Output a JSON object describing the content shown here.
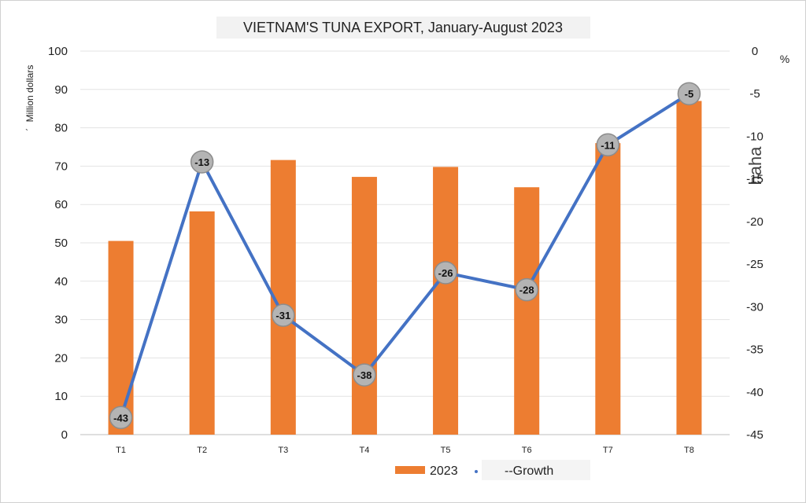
{
  "chart_data": {
    "type": "bar",
    "title": "VIETNAM'S TUNA EXPORT, January-August 2023",
    "categories": [
      "T1",
      "T2",
      "T3",
      "T4",
      "T5",
      "T6",
      "T7",
      "T8"
    ],
    "series": [
      {
        "name": "2023",
        "type": "bar",
        "axis": "left",
        "color": "#ed7d31",
        "values": [
          50.5,
          58.2,
          71.6,
          67.2,
          69.8,
          64.5,
          76,
          87
        ]
      },
      {
        "name": "--Growth",
        "type": "line",
        "axis": "right",
        "color": "#4472c4",
        "values": [
          -43,
          -13,
          -31,
          -38,
          -26,
          -28,
          -11,
          -5
        ]
      }
    ],
    "ylabel": "Million dollars",
    "y2label": "%",
    "ylim": [
      0,
      100
    ],
    "y2lim": [
      -45,
      0
    ],
    "yticks": [
      0,
      10,
      20,
      30,
      40,
      50,
      60,
      70,
      80,
      90,
      100
    ],
    "y2ticks": [
      0,
      -5,
      -10,
      -15,
      -20,
      -25,
      -30,
      -35,
      -40,
      -45
    ],
    "grid": true,
    "legend_position": "bottom-center",
    "data_labels": [
      "-43",
      "-13",
      "-31",
      "-38",
      "-26",
      "-28",
      "-11",
      "-5"
    ]
  },
  "artifacts": {
    "right_text": "haha",
    "ylabel_prefix": "`"
  }
}
